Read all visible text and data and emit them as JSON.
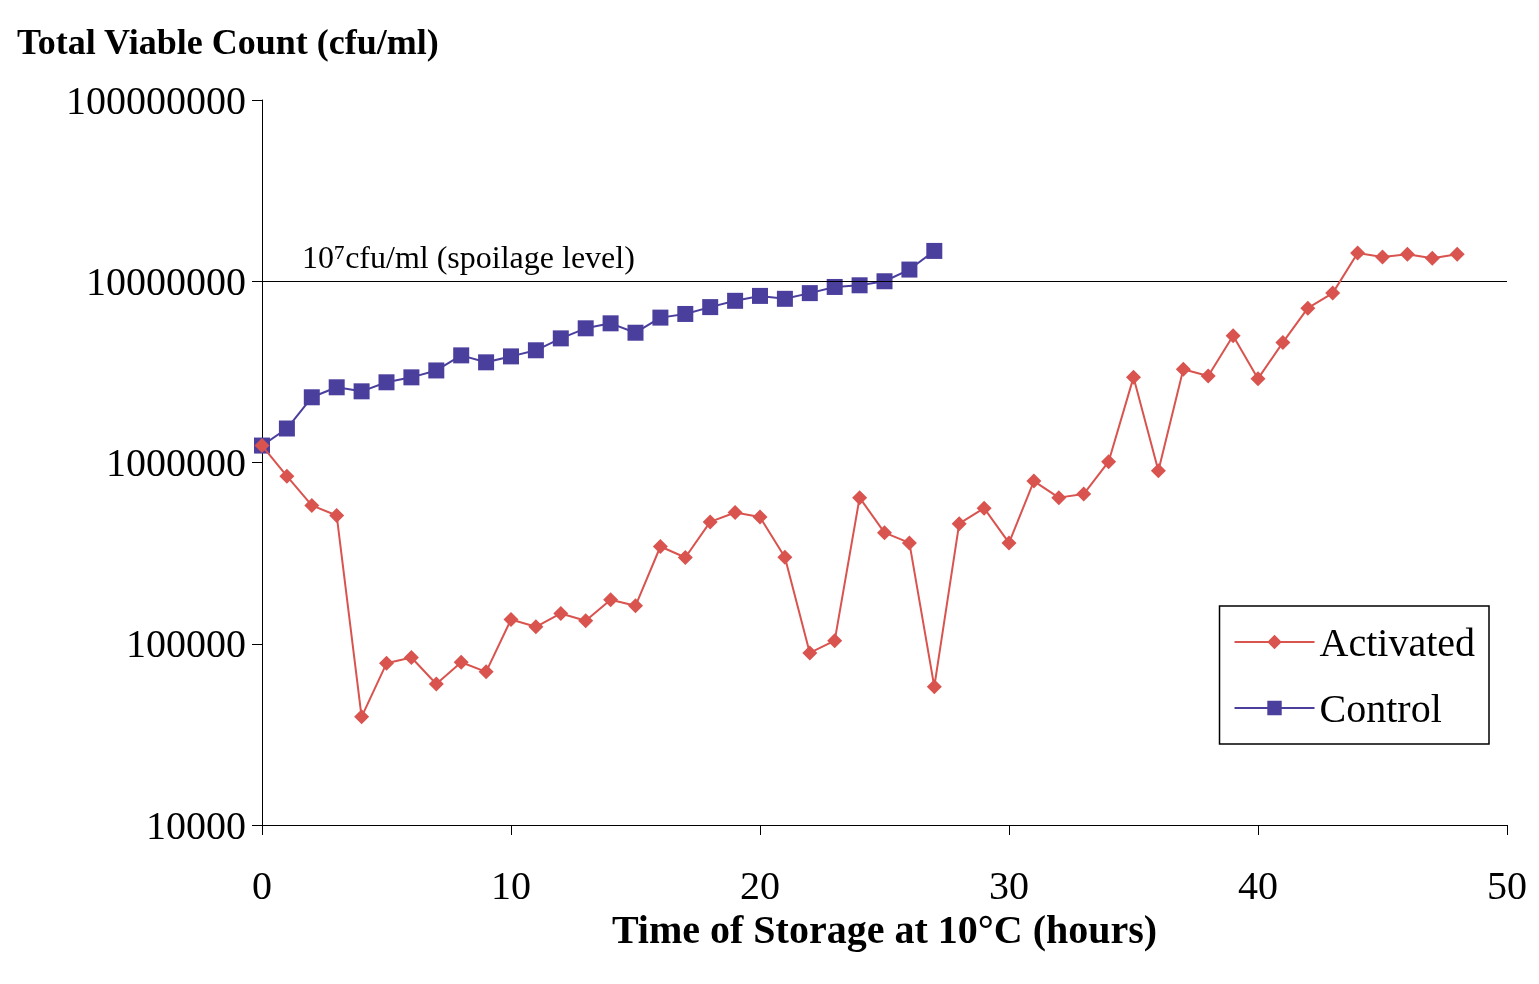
{
  "chart_data": {
    "type": "line",
    "ylabel": "Total Viable Count (cfu/ml)",
    "xlabel": "Time of Storage at 10°C (hours)",
    "xlim": [
      0,
      50
    ],
    "xticks": [
      0,
      10,
      20,
      30,
      40,
      50
    ],
    "ylim": [
      10000,
      100000000
    ],
    "yticks": [
      10000,
      100000,
      1000000,
      10000000,
      100000000
    ],
    "log": "y",
    "grid": false,
    "legend": "bottom right",
    "ref_lines": [
      {
        "axis": "y",
        "value": 10000000,
        "label": "10⁷cfu/ml (spoilage level)",
        "color": "#000000"
      }
    ],
    "series": [
      {
        "name": "Activated",
        "color": "#d9534f",
        "marker": "diamond",
        "x": [
          0,
          1,
          2,
          3,
          4,
          5,
          6,
          7,
          8,
          9,
          10,
          11,
          12,
          13,
          14,
          15,
          16,
          17,
          18,
          19,
          20,
          21,
          22,
          23,
          24,
          25,
          26,
          27,
          28,
          29,
          30,
          31,
          32,
          33,
          34,
          35,
          36,
          37,
          38,
          39,
          40,
          41,
          42,
          43,
          44,
          45,
          46,
          47,
          48
        ],
        "values": [
          1240000,
          840000,
          580000,
          510000,
          39500,
          78000,
          84000,
          60000,
          79000,
          70000,
          136000,
          124000,
          147000,
          134000,
          175000,
          162000,
          344000,
          299000,
          470000,
          530000,
          500000,
          300000,
          89000,
          104000,
          640000,
          410000,
          360000,
          58000,
          460000,
          560000,
          360000,
          790000,
          640000,
          670000,
          1010000,
          2950000,
          900000,
          3270000,
          3000000,
          5000000,
          2900000,
          4600000,
          7100000,
          8600000,
          14300000,
          13600000,
          14100000,
          13400000,
          14100000
        ]
      },
      {
        "name": "Control",
        "color": "#4b3f9e",
        "marker": "square",
        "x": [
          0,
          1,
          2,
          3,
          4,
          5,
          6,
          7,
          8,
          9,
          10,
          11,
          12,
          13,
          14,
          15,
          16,
          17,
          18,
          19,
          20,
          21,
          22,
          23,
          24,
          25,
          26,
          27
        ],
        "values": [
          1240000,
          1540000,
          2290000,
          2600000,
          2470000,
          2770000,
          2950000,
          3220000,
          3900000,
          3570000,
          3850000,
          4160000,
          4840000,
          5500000,
          5860000,
          5200000,
          6300000,
          6600000,
          7200000,
          7800000,
          8300000,
          8000000,
          8600000,
          9300000,
          9500000,
          10000000,
          11600000,
          14700000
        ]
      }
    ]
  }
}
